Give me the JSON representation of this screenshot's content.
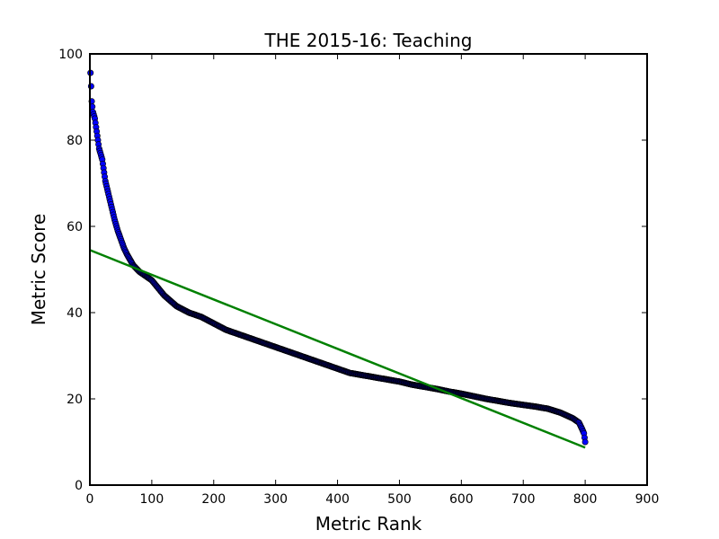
{
  "chart_data": {
    "type": "scatter",
    "title": "THE 2015-16: Teaching",
    "xlabel": "Metric Rank",
    "ylabel": "Metric Score",
    "xlim": [
      0,
      900
    ],
    "ylim": [
      0,
      100
    ],
    "xticks": [
      0,
      100,
      200,
      300,
      400,
      500,
      600,
      700,
      800,
      900
    ],
    "yticks": [
      0,
      20,
      40,
      60,
      80,
      100
    ],
    "grid": false,
    "point_color": "#0000ff",
    "point_edge_color": "#000000",
    "trend_color": "#008000",
    "trendline": {
      "x": [
        0,
        800
      ],
      "y": [
        54.5,
        8.7
      ]
    },
    "anchors": {
      "x": [
        1,
        2,
        3,
        5,
        8,
        10,
        12,
        15,
        20,
        25,
        30,
        35,
        40,
        45,
        50,
        55,
        60,
        70,
        80,
        90,
        100,
        120,
        140,
        160,
        180,
        200,
        220,
        240,
        260,
        280,
        300,
        320,
        340,
        360,
        380,
        400,
        420,
        440,
        460,
        480,
        500,
        520,
        540,
        560,
        580,
        600,
        620,
        640,
        660,
        680,
        700,
        720,
        740,
        760,
        780,
        790,
        795,
        798,
        800
      ],
      "y": [
        95.6,
        92.5,
        89.0,
        86.5,
        85.0,
        83.0,
        81.0,
        78.0,
        75.5,
        70.5,
        67.5,
        64.5,
        61.5,
        59.0,
        57.0,
        55.0,
        53.5,
        51.0,
        49.5,
        48.5,
        47.5,
        44.0,
        41.5,
        40.0,
        39.0,
        37.5,
        36.0,
        35.0,
        34.0,
        33.0,
        32.0,
        31.0,
        30.0,
        29.0,
        28.0,
        27.0,
        26.0,
        25.5,
        25.0,
        24.5,
        24.0,
        23.3,
        22.8,
        22.3,
        21.7,
        21.2,
        20.6,
        20.0,
        19.5,
        19.0,
        18.6,
        18.2,
        17.7,
        16.8,
        15.5,
        14.5,
        13.0,
        12.0,
        10.0
      ]
    }
  }
}
